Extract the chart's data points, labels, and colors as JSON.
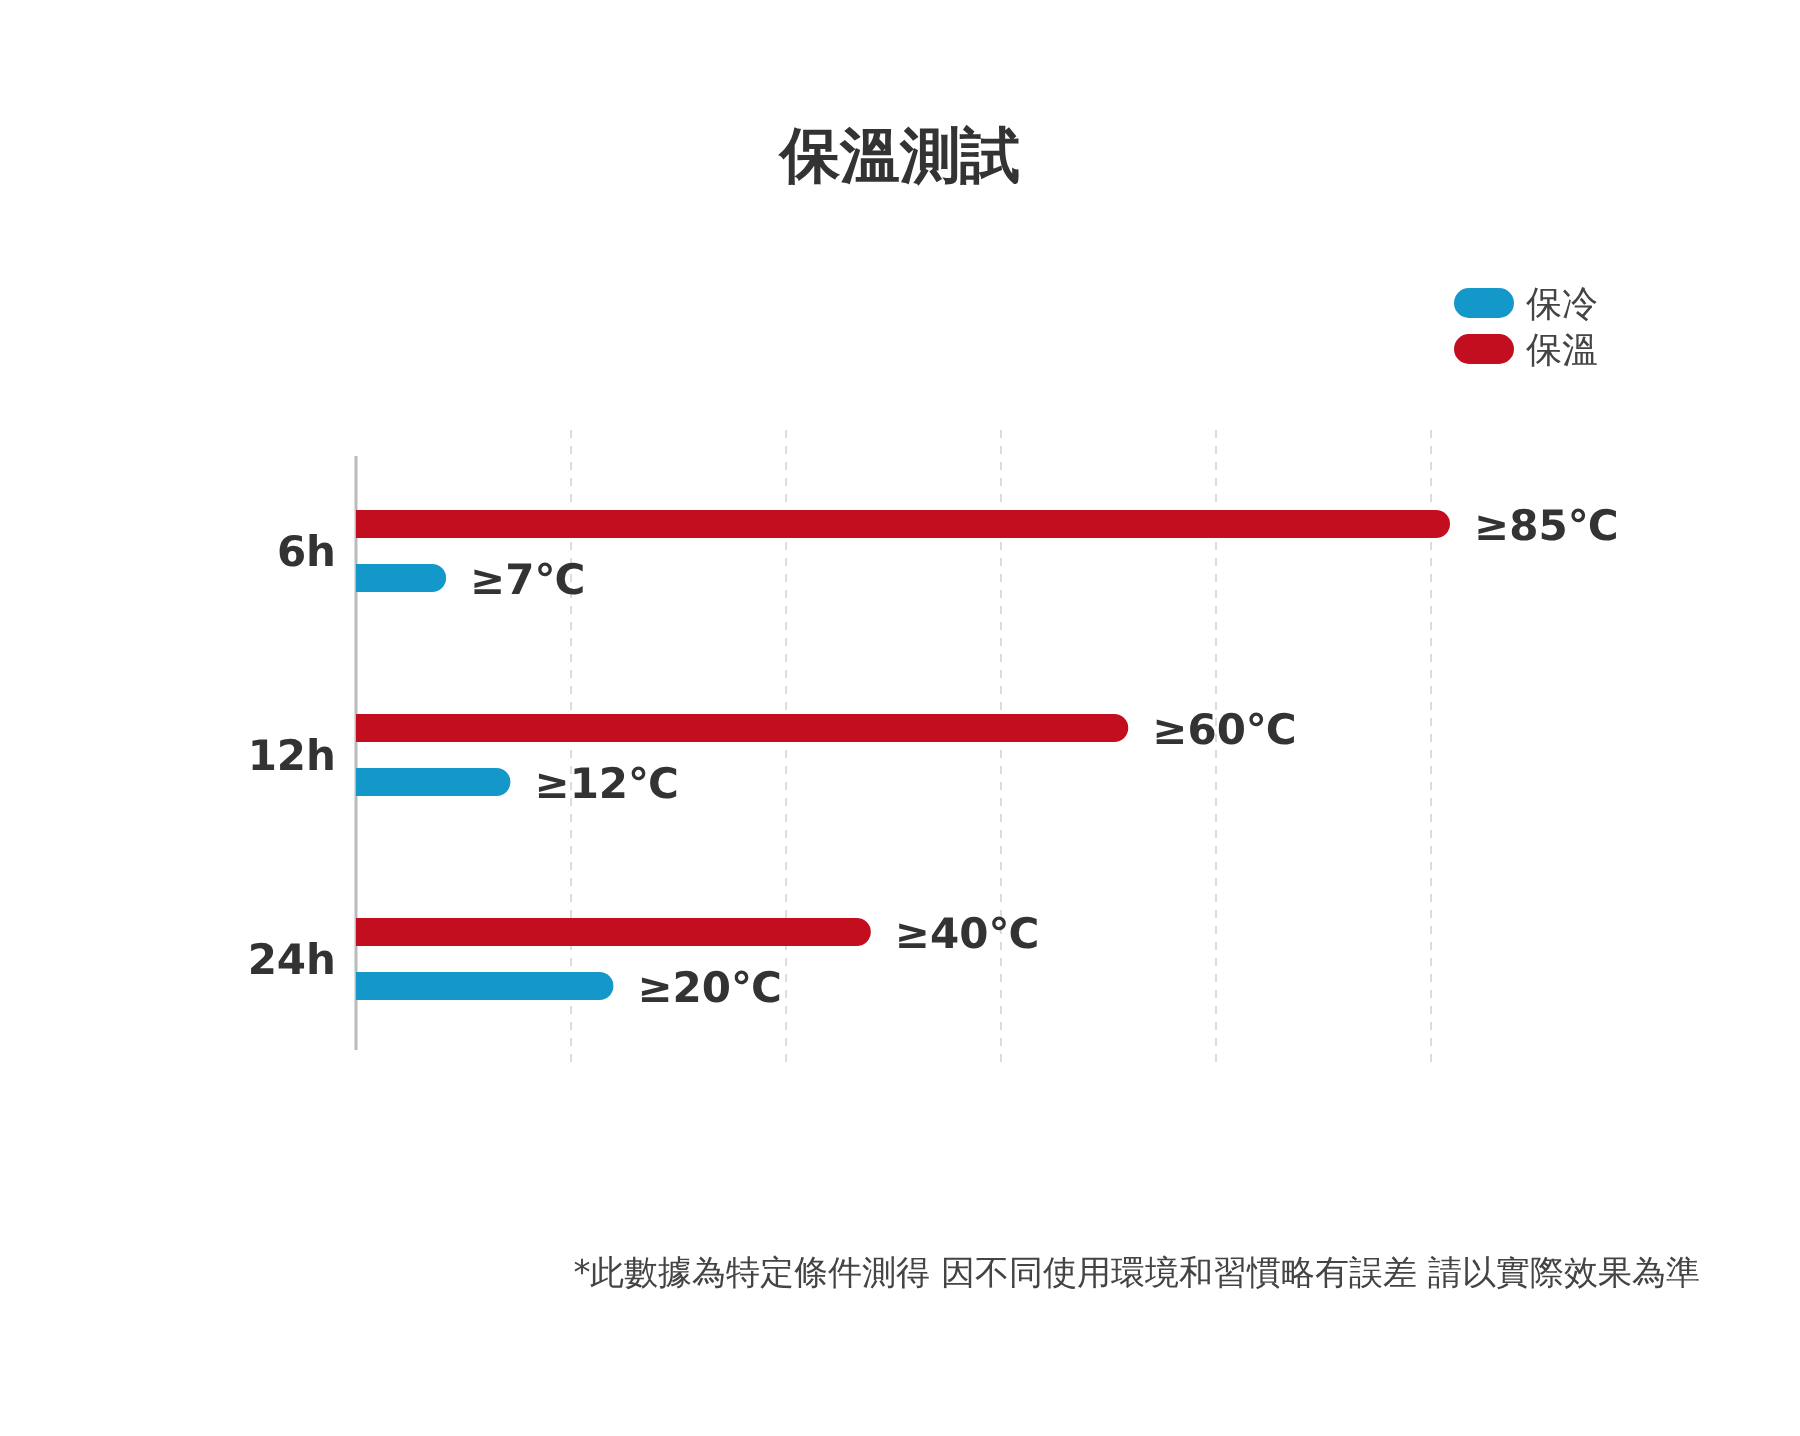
{
  "chart_data": {
    "type": "bar",
    "orientation": "horizontal",
    "xlim": [
      0,
      85
    ],
    "title": "保溫測試",
    "categories": [
      "6h",
      "12h",
      "24h"
    ],
    "series": [
      {
        "name": "保溫",
        "color": "#c20e1f",
        "values": [
          85,
          60,
          40
        ],
        "value_labels": [
          "≥85℃",
          "≥60℃",
          "≥40℃"
        ]
      },
      {
        "name": "保冷",
        "color": "#1497c9",
        "values": [
          7,
          12,
          20
        ],
        "value_labels": [
          "≥7℃",
          "≥12℃",
          "≥20℃"
        ]
      }
    ],
    "grid": "x",
    "legend": "top right",
    "annotations": [
      "*此數據為特定條件測得 因不同使用環境和習慣略有誤差 請以實際效果為準"
    ]
  }
}
